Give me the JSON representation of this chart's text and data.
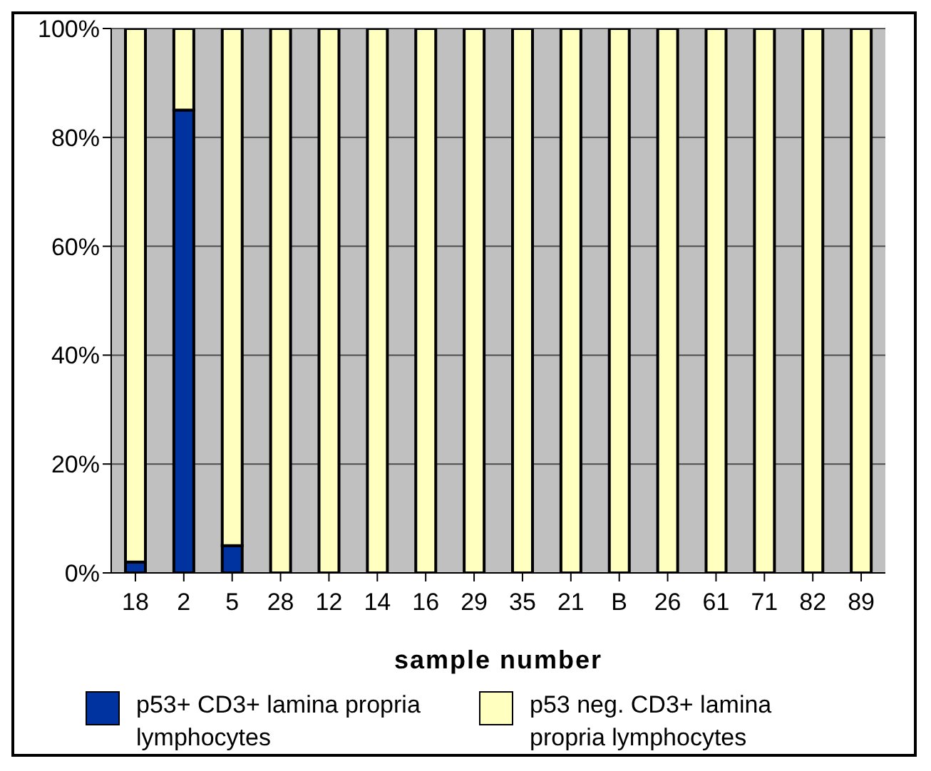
{
  "chart_data": {
    "type": "bar",
    "stacked": true,
    "xlabel": "sample number",
    "categories": [
      "18",
      "2",
      "5",
      "28",
      "12",
      "14",
      "16",
      "29",
      "35",
      "21",
      "B",
      "26",
      "61",
      "71",
      "82",
      "89"
    ],
    "series": [
      {
        "name": "p53+ CD3+ lamina propria lymphocytes",
        "color": "#0033a0",
        "values": [
          2,
          85,
          5,
          0,
          0,
          0,
          0,
          0,
          0,
          0,
          0,
          0,
          0,
          0,
          0,
          0
        ]
      },
      {
        "name": "p53 neg. CD3+ lamina propria lymphocytes",
        "color": "#ffffc0",
        "values": [
          98,
          15,
          95,
          100,
          100,
          100,
          100,
          100,
          100,
          100,
          100,
          100,
          100,
          100,
          100,
          100
        ]
      }
    ],
    "ylim": [
      0,
      100
    ],
    "yticks": [
      {
        "value": 0,
        "label": "0%"
      },
      {
        "value": 20,
        "label": "20%"
      },
      {
        "value": 40,
        "label": "40%"
      },
      {
        "value": 60,
        "label": "60%"
      },
      {
        "value": 80,
        "label": "80%"
      },
      {
        "value": 100,
        "label": "100%"
      }
    ],
    "grid": "y",
    "legend": "bottom"
  }
}
